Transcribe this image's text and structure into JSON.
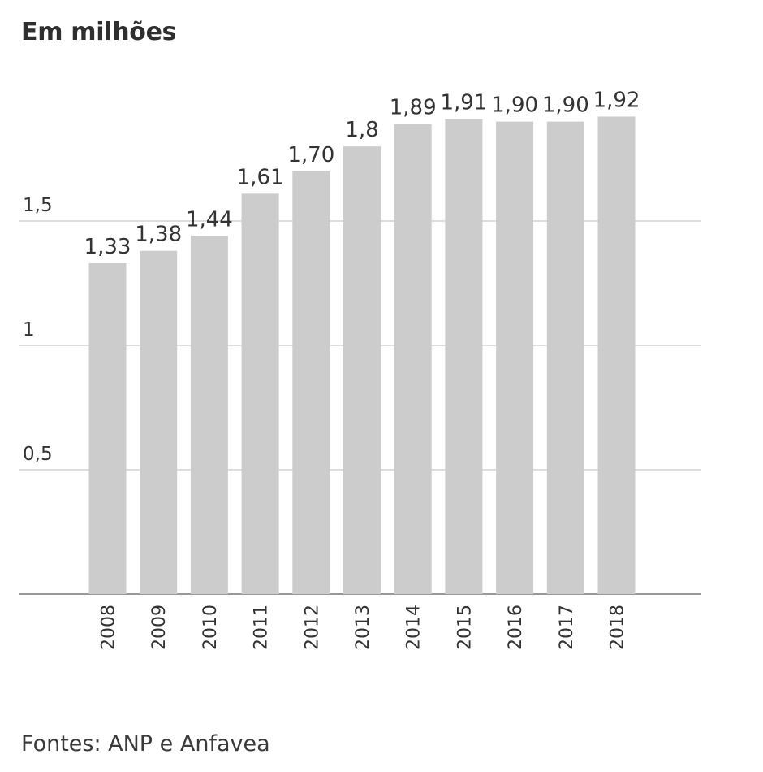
{
  "chart_data": {
    "type": "bar",
    "title": "Em milhões",
    "categories": [
      "2008",
      "2009",
      "2010",
      "2011",
      "2012",
      "2013",
      "2014",
      "2015",
      "2016",
      "2017",
      "2018"
    ],
    "values": [
      1.33,
      1.38,
      1.44,
      1.61,
      1.7,
      1.8,
      1.89,
      1.91,
      1.9,
      1.9,
      1.92
    ],
    "value_labels": [
      "1,33",
      "1,38",
      "1,44",
      "1,61",
      "1,70",
      "1,8",
      "1,89",
      "1,91",
      "1,90",
      "1,90",
      "1,92"
    ],
    "y_ticks": [
      0.5,
      1,
      1.5
    ],
    "y_tick_labels": [
      "0,5",
      "1",
      "1,5"
    ],
    "ylim": [
      0,
      2
    ],
    "xlabel": "",
    "ylabel": "",
    "grid": true,
    "colors": {
      "bar": "#cccccc",
      "grid": "#dddddd",
      "axis": "#999999",
      "text": "#333333"
    }
  },
  "source": "Fontes: ANP e Anfavea"
}
